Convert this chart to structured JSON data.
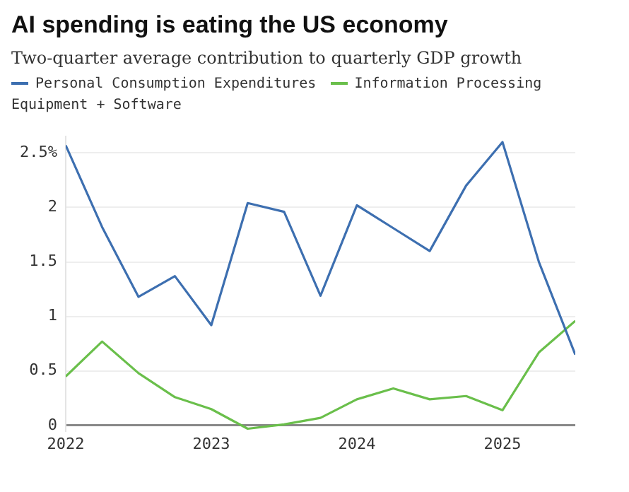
{
  "chart_data": {
    "type": "line",
    "title": "AI spending is eating the US economy",
    "subtitle": "Two-quarter average contribution to quarterly GDP growth",
    "x": [
      2022,
      2022.25,
      2022.5,
      2022.75,
      2023,
      2023.25,
      2023.5,
      2023.75,
      2024,
      2024.25,
      2024.5,
      2024.75,
      2025,
      2025.25,
      2025.5
    ],
    "series": [
      {
        "name": "Personal Consumption Expenditures",
        "color": "#3d6fb0",
        "values": [
          2.57,
          1.82,
          1.18,
          1.37,
          0.92,
          2.04,
          1.96,
          1.19,
          2.02,
          1.81,
          1.6,
          2.2,
          2.6,
          1.5,
          0.65
        ]
      },
      {
        "name": "Information Processing Equipment + Software",
        "color": "#6abf4b",
        "values": [
          0.45,
          0.77,
          0.48,
          0.26,
          0.15,
          -0.03,
          0.01,
          0.07,
          0.24,
          0.34,
          0.24,
          0.27,
          0.14,
          0.67,
          0.96
        ]
      }
    ],
    "xlim": [
      2022,
      2025.5
    ],
    "xticks": [
      2022,
      2023,
      2024,
      2025
    ],
    "ylim": [
      -0.05,
      2.65
    ],
    "yticks": [
      0,
      0.5,
      1,
      1.5,
      2,
      {
        "value": 2.5,
        "label": "2.5%"
      }
    ],
    "grid": "y",
    "legend": "top",
    "marker": "none",
    "line_style": "solid"
  }
}
